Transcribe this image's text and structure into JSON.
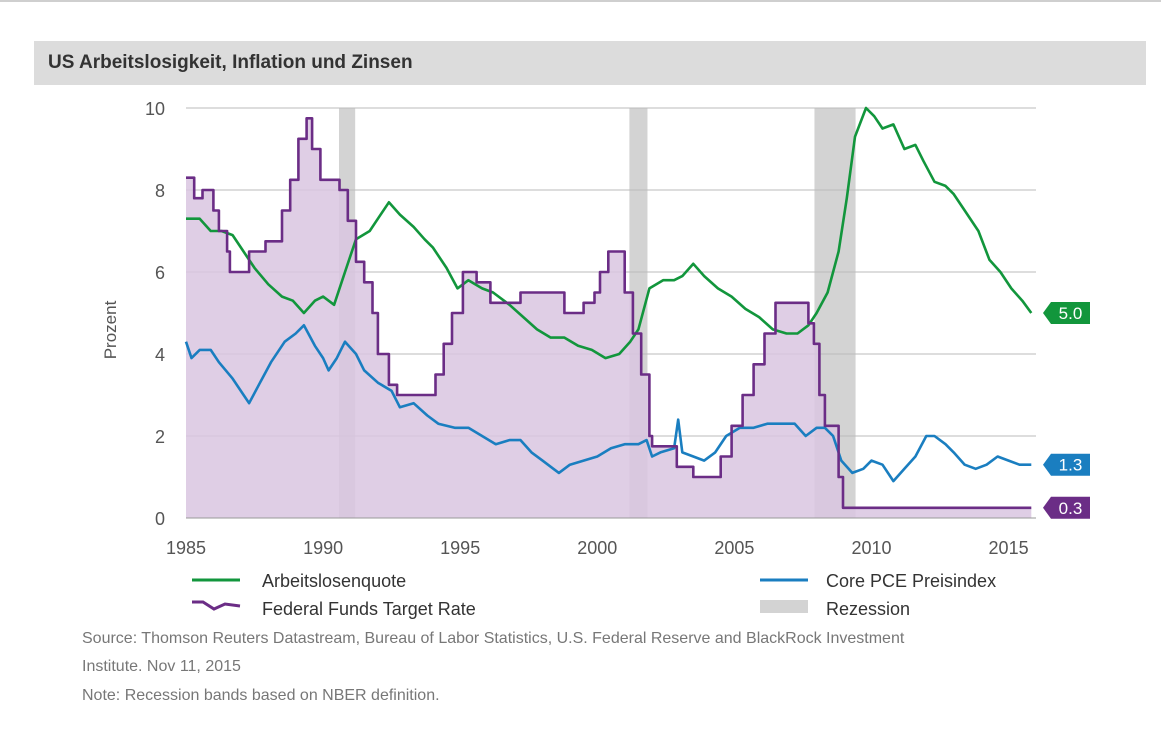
{
  "title": "US Arbeitslosigkeit, Inflation und Zinsen",
  "colors": {
    "unemployment": "#12963c",
    "pce": "#1a7ec0",
    "fed": "#6b2d86",
    "fed_fill": "#d9c6e0",
    "recession": "#d3d3d3",
    "grid": "#bbbbbb"
  },
  "chart_data": {
    "type": "line",
    "ylabel": "Prozent",
    "xlim": [
      1985,
      2016
    ],
    "ylim": [
      0,
      10
    ],
    "x_ticks": [
      "1985",
      "1990",
      "1995",
      "2000",
      "2005",
      "2010",
      "2015"
    ],
    "y_ticks": [
      "0",
      "2",
      "4",
      "6",
      "8",
      "10"
    ],
    "grid": true,
    "recessions": [
      [
        1990.58,
        1991.17
      ],
      [
        2001.17,
        2001.83
      ],
      [
        2007.92,
        2009.42
      ]
    ],
    "series": [
      {
        "name": "Arbeitslosenquote",
        "end_label": "5.0",
        "points": [
          [
            1985.0,
            7.3
          ],
          [
            1985.5,
            7.3
          ],
          [
            1985.9,
            7.0
          ],
          [
            1986.3,
            7.0
          ],
          [
            1986.7,
            6.9
          ],
          [
            1987.0,
            6.6
          ],
          [
            1987.5,
            6.1
          ],
          [
            1988.0,
            5.7
          ],
          [
            1988.5,
            5.4
          ],
          [
            1988.9,
            5.3
          ],
          [
            1989.3,
            5.0
          ],
          [
            1989.7,
            5.3
          ],
          [
            1990.0,
            5.4
          ],
          [
            1990.4,
            5.2
          ],
          [
            1990.8,
            6.0
          ],
          [
            1991.2,
            6.8
          ],
          [
            1991.7,
            7.0
          ],
          [
            1992.0,
            7.3
          ],
          [
            1992.4,
            7.7
          ],
          [
            1992.8,
            7.4
          ],
          [
            1993.3,
            7.1
          ],
          [
            1993.7,
            6.8
          ],
          [
            1994.0,
            6.6
          ],
          [
            1994.5,
            6.1
          ],
          [
            1994.9,
            5.6
          ],
          [
            1995.3,
            5.8
          ],
          [
            1995.8,
            5.6
          ],
          [
            1996.2,
            5.5
          ],
          [
            1996.8,
            5.2
          ],
          [
            1997.3,
            4.9
          ],
          [
            1997.8,
            4.6
          ],
          [
            1998.3,
            4.4
          ],
          [
            1998.8,
            4.4
          ],
          [
            1999.3,
            4.2
          ],
          [
            1999.8,
            4.1
          ],
          [
            2000.3,
            3.9
          ],
          [
            2000.8,
            4.0
          ],
          [
            2001.2,
            4.3
          ],
          [
            2001.5,
            4.6
          ],
          [
            2001.9,
            5.6
          ],
          [
            2002.4,
            5.8
          ],
          [
            2002.8,
            5.8
          ],
          [
            2003.1,
            5.9
          ],
          [
            2003.5,
            6.2
          ],
          [
            2003.9,
            5.9
          ],
          [
            2004.4,
            5.6
          ],
          [
            2004.9,
            5.4
          ],
          [
            2005.4,
            5.1
          ],
          [
            2005.9,
            4.9
          ],
          [
            2006.4,
            4.6
          ],
          [
            2006.9,
            4.5
          ],
          [
            2007.3,
            4.5
          ],
          [
            2007.7,
            4.7
          ],
          [
            2008.0,
            5.0
          ],
          [
            2008.4,
            5.5
          ],
          [
            2008.8,
            6.5
          ],
          [
            2009.1,
            7.8
          ],
          [
            2009.4,
            9.3
          ],
          [
            2009.8,
            10.0
          ],
          [
            2010.1,
            9.8
          ],
          [
            2010.4,
            9.5
          ],
          [
            2010.8,
            9.6
          ],
          [
            2011.2,
            9.0
          ],
          [
            2011.6,
            9.1
          ],
          [
            2011.9,
            8.7
          ],
          [
            2012.3,
            8.2
          ],
          [
            2012.7,
            8.1
          ],
          [
            2013.0,
            7.9
          ],
          [
            2013.4,
            7.5
          ],
          [
            2013.9,
            7.0
          ],
          [
            2014.3,
            6.3
          ],
          [
            2014.7,
            6.0
          ],
          [
            2015.1,
            5.6
          ],
          [
            2015.5,
            5.3
          ],
          [
            2015.83,
            5.0
          ]
        ]
      },
      {
        "name": "Core PCE Preisindex",
        "end_label": "1.3",
        "points": [
          [
            1985.0,
            4.3
          ],
          [
            1985.2,
            3.9
          ],
          [
            1985.5,
            4.1
          ],
          [
            1985.9,
            4.1
          ],
          [
            1986.2,
            3.8
          ],
          [
            1986.7,
            3.4
          ],
          [
            1987.1,
            3.0
          ],
          [
            1987.3,
            2.8
          ],
          [
            1987.7,
            3.3
          ],
          [
            1988.1,
            3.8
          ],
          [
            1988.6,
            4.3
          ],
          [
            1989.0,
            4.5
          ],
          [
            1989.3,
            4.7
          ],
          [
            1989.7,
            4.2
          ],
          [
            1990.0,
            3.9
          ],
          [
            1990.2,
            3.6
          ],
          [
            1990.5,
            3.9
          ],
          [
            1990.8,
            4.3
          ],
          [
            1991.2,
            4.0
          ],
          [
            1991.5,
            3.6
          ],
          [
            1992.0,
            3.3
          ],
          [
            1992.5,
            3.1
          ],
          [
            1992.8,
            2.7
          ],
          [
            1993.3,
            2.8
          ],
          [
            1993.8,
            2.5
          ],
          [
            1994.2,
            2.3
          ],
          [
            1994.8,
            2.2
          ],
          [
            1995.3,
            2.2
          ],
          [
            1995.8,
            2.0
          ],
          [
            1996.3,
            1.8
          ],
          [
            1996.8,
            1.9
          ],
          [
            1997.2,
            1.9
          ],
          [
            1997.6,
            1.6
          ],
          [
            1998.0,
            1.4
          ],
          [
            1998.4,
            1.2
          ],
          [
            1998.6,
            1.1
          ],
          [
            1999.0,
            1.3
          ],
          [
            1999.5,
            1.4
          ],
          [
            2000.0,
            1.5
          ],
          [
            2000.5,
            1.7
          ],
          [
            2001.0,
            1.8
          ],
          [
            2001.5,
            1.8
          ],
          [
            2001.8,
            1.9
          ],
          [
            2002.0,
            1.5
          ],
          [
            2002.3,
            1.6
          ],
          [
            2002.8,
            1.7
          ],
          [
            2002.95,
            2.4
          ],
          [
            2003.1,
            1.6
          ],
          [
            2003.5,
            1.5
          ],
          [
            2003.9,
            1.4
          ],
          [
            2004.3,
            1.6
          ],
          [
            2004.7,
            2.0
          ],
          [
            2005.2,
            2.2
          ],
          [
            2005.7,
            2.2
          ],
          [
            2006.2,
            2.3
          ],
          [
            2006.7,
            2.3
          ],
          [
            2007.2,
            2.3
          ],
          [
            2007.6,
            2.0
          ],
          [
            2008.0,
            2.2
          ],
          [
            2008.3,
            2.2
          ],
          [
            2008.6,
            2.0
          ],
          [
            2008.9,
            1.4
          ],
          [
            2009.3,
            1.1
          ],
          [
            2009.7,
            1.2
          ],
          [
            2010.0,
            1.4
          ],
          [
            2010.4,
            1.3
          ],
          [
            2010.8,
            0.9
          ],
          [
            2011.2,
            1.2
          ],
          [
            2011.6,
            1.5
          ],
          [
            2012.0,
            2.0
          ],
          [
            2012.3,
            2.0
          ],
          [
            2012.7,
            1.8
          ],
          [
            2013.0,
            1.6
          ],
          [
            2013.4,
            1.3
          ],
          [
            2013.8,
            1.2
          ],
          [
            2014.2,
            1.3
          ],
          [
            2014.6,
            1.5
          ],
          [
            2015.0,
            1.4
          ],
          [
            2015.4,
            1.3
          ],
          [
            2015.83,
            1.3
          ]
        ]
      },
      {
        "name": "Federal Funds Target Rate",
        "end_label": "0.3",
        "step": true,
        "points": [
          [
            1985.0,
            8.3
          ],
          [
            1985.3,
            7.8
          ],
          [
            1985.6,
            8.0
          ],
          [
            1986.0,
            7.5
          ],
          [
            1986.2,
            7.0
          ],
          [
            1986.5,
            6.5
          ],
          [
            1986.6,
            6.0
          ],
          [
            1987.3,
            6.5
          ],
          [
            1987.9,
            6.75
          ],
          [
            1988.5,
            7.5
          ],
          [
            1988.8,
            8.25
          ],
          [
            1989.1,
            9.25
          ],
          [
            1989.4,
            9.75
          ],
          [
            1989.6,
            9.0
          ],
          [
            1989.9,
            8.25
          ],
          [
            1990.6,
            8.0
          ],
          [
            1990.9,
            7.25
          ],
          [
            1991.2,
            6.25
          ],
          [
            1991.5,
            5.75
          ],
          [
            1991.8,
            5.0
          ],
          [
            1992.0,
            4.0
          ],
          [
            1992.4,
            3.25
          ],
          [
            1992.7,
            3.0
          ],
          [
            1994.1,
            3.5
          ],
          [
            1994.4,
            4.25
          ],
          [
            1994.7,
            5.0
          ],
          [
            1995.1,
            6.0
          ],
          [
            1995.6,
            5.75
          ],
          [
            1996.1,
            5.25
          ],
          [
            1997.2,
            5.5
          ],
          [
            1998.8,
            5.0
          ],
          [
            1999.5,
            5.25
          ],
          [
            1999.9,
            5.5
          ],
          [
            2000.1,
            6.0
          ],
          [
            2000.4,
            6.5
          ],
          [
            2001.0,
            5.5
          ],
          [
            2001.3,
            4.5
          ],
          [
            2001.6,
            3.5
          ],
          [
            2001.9,
            2.0
          ],
          [
            2002.0,
            1.75
          ],
          [
            2002.9,
            1.25
          ],
          [
            2003.5,
            1.0
          ],
          [
            2004.5,
            1.5
          ],
          [
            2004.9,
            2.25
          ],
          [
            2005.3,
            3.0
          ],
          [
            2005.7,
            3.75
          ],
          [
            2006.1,
            4.5
          ],
          [
            2006.5,
            5.25
          ],
          [
            2007.7,
            4.75
          ],
          [
            2007.9,
            4.25
          ],
          [
            2008.1,
            3.0
          ],
          [
            2008.3,
            2.25
          ],
          [
            2008.8,
            1.0
          ],
          [
            2008.96,
            0.25
          ],
          [
            2015.83,
            0.25
          ]
        ]
      }
    ]
  },
  "legend": {
    "unemployment": "Arbeitslosenquote",
    "pce": "Core PCE Preisindex",
    "fed": "Federal Funds Target Rate",
    "recession": "Rezession"
  },
  "footer": {
    "source_line1": "Source: Thomson Reuters Datastream, Bureau of Labor Statistics, U.S. Federal Reserve and BlackRock Investment",
    "source_line2": "Institute. Nov 11, 2015",
    "note": "Note: Recession bands based on NBER definition."
  }
}
